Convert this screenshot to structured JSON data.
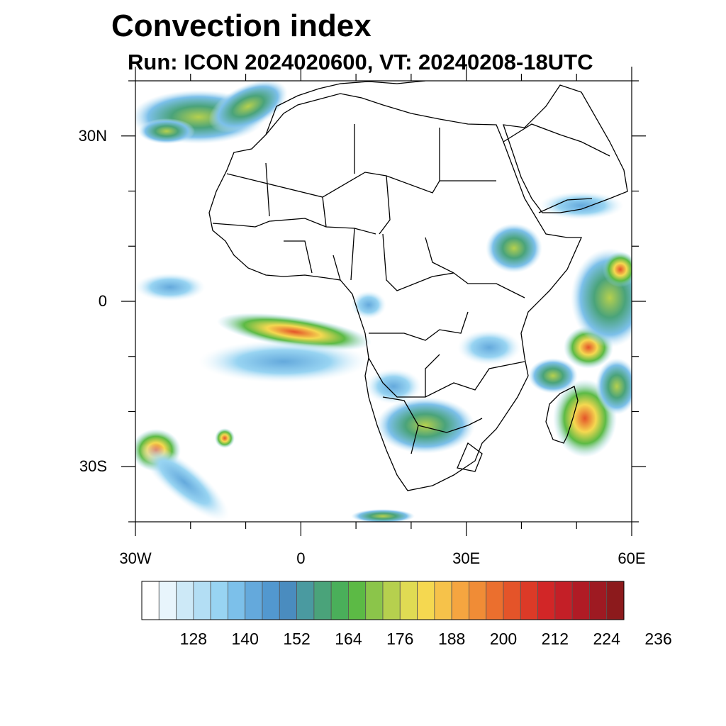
{
  "title": "Convection index",
  "subtitle": "Run: ICON 2024020600,  VT: 20240208-18UTC",
  "map": {
    "lat_labels": [
      {
        "text": "30N",
        "lat": 30
      },
      {
        "text": "0",
        "lat": 0
      },
      {
        "text": "30S",
        "lat": -30
      }
    ],
    "lon_labels": [
      {
        "text": "30W",
        "lon": -30
      },
      {
        "text": "0",
        "lon": 0
      },
      {
        "text": "30E",
        "lon": 30
      },
      {
        "text": "60E",
        "lon": 60
      }
    ],
    "extent": {
      "lon_min": -30,
      "lon_max": 60,
      "lat_min": -40,
      "lat_max": 40
    }
  },
  "colorbar": {
    "colors": [
      "#ffffff",
      "#e8f5fc",
      "#cde9f7",
      "#b3def4",
      "#98d4f2",
      "#7cc0ea",
      "#64a9dc",
      "#5298cf",
      "#4a8cbf",
      "#4a9aa0",
      "#4aa37a",
      "#4aaf5a",
      "#5cba45",
      "#8bc54a",
      "#b6d04e",
      "#e0db53",
      "#f5d850",
      "#f6c24a",
      "#f5a540",
      "#f08c36",
      "#eb6f2e",
      "#e45429",
      "#dc3a27",
      "#d22627",
      "#c41f27",
      "#b01b25",
      "#9e1a22",
      "#8c1a1c"
    ],
    "labels": [
      "128",
      "140",
      "152",
      "164",
      "176",
      "188",
      "200",
      "212",
      "224",
      "236"
    ]
  }
}
